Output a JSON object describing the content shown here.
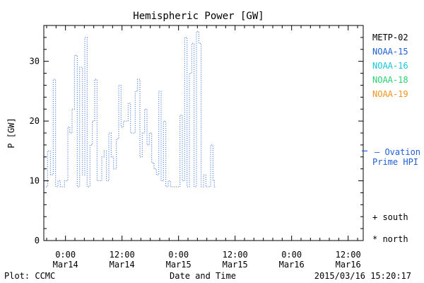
{
  "chart_data": {
    "type": "line",
    "title": "Hemispheric Power [GW]",
    "ylabel": "P [GW]",
    "xlabel": "Date and Time",
    "ylim": [
      0,
      36
    ],
    "yticks": [
      0,
      10,
      20,
      30
    ],
    "xticks": [
      {
        "x": 0,
        "line1": "0:00",
        "line2": "Mar14"
      },
      {
        "x": 12,
        "line1": "12:00",
        "line2": "Mar14"
      },
      {
        "x": 24,
        "line1": "0:00",
        "line2": "Mar15"
      },
      {
        "x": 36,
        "line1": "12:00",
        "line2": "Mar15"
      },
      {
        "x": 48,
        "line1": "0:00",
        "line2": "Mar16"
      },
      {
        "x": 60,
        "line1": "12:00",
        "line2": "Mar16"
      }
    ],
    "x_unit": "hours since 2015-03-14 00:00",
    "xlim": [
      -4.6,
      63.2
    ],
    "grid": false,
    "series": [
      {
        "name": "NOAA-15",
        "color": "#1f5fd6",
        "style": "dotted-step",
        "points": [
          [
            -4.6,
            9
          ],
          [
            -3.8,
            15
          ],
          [
            -3.2,
            11
          ],
          [
            -2.6,
            27
          ],
          [
            -2.1,
            9
          ],
          [
            -1.6,
            10
          ],
          [
            -1.1,
            9
          ],
          [
            -0.2,
            10
          ],
          [
            0.5,
            19
          ],
          [
            0.9,
            18
          ],
          [
            1.4,
            22
          ],
          [
            1.9,
            31
          ],
          [
            2.5,
            9
          ],
          [
            3.0,
            29
          ],
          [
            3.6,
            11
          ],
          [
            4.1,
            34
          ],
          [
            4.6,
            9
          ],
          [
            5.2,
            16
          ],
          [
            5.7,
            20
          ],
          [
            6.2,
            27
          ],
          [
            6.7,
            10
          ],
          [
            7.7,
            14
          ],
          [
            8.2,
            15
          ],
          [
            8.7,
            10
          ],
          [
            9.2,
            18
          ],
          [
            9.7,
            14
          ],
          [
            10.2,
            12
          ],
          [
            10.8,
            17
          ],
          [
            11.3,
            26
          ],
          [
            11.8,
            19
          ],
          [
            12.3,
            20
          ],
          [
            13.3,
            23
          ],
          [
            13.8,
            18
          ],
          [
            14.8,
            25
          ],
          [
            15.3,
            27
          ],
          [
            15.8,
            14
          ],
          [
            16.3,
            18
          ],
          [
            16.8,
            22
          ],
          [
            17.3,
            16
          ],
          [
            17.8,
            18
          ],
          [
            18.3,
            13
          ],
          [
            18.8,
            12
          ],
          [
            19.3,
            11
          ],
          [
            19.8,
            25
          ],
          [
            20.3,
            10
          ],
          [
            20.8,
            20
          ],
          [
            21.3,
            9
          ],
          [
            21.8,
            10
          ],
          [
            22.3,
            9
          ],
          [
            24.3,
            21
          ],
          [
            24.8,
            10
          ],
          [
            25.3,
            34
          ],
          [
            25.8,
            9
          ],
          [
            26.3,
            28
          ],
          [
            26.8,
            33
          ],
          [
            27.3,
            9
          ],
          [
            27.8,
            35
          ],
          [
            28.3,
            33
          ],
          [
            28.8,
            9
          ],
          [
            29.3,
            11
          ],
          [
            29.8,
            9
          ],
          [
            30.8,
            16
          ],
          [
            31.3,
            10
          ],
          [
            31.6,
            9
          ]
        ]
      },
      {
        "name": "Ovation Prime HPI",
        "color": "#1f5fd6",
        "style": "dash-marker",
        "points": [
          [
            63.2,
            15
          ]
        ]
      }
    ],
    "legend": [
      {
        "label": "METP-02",
        "color": "#000000"
      },
      {
        "label": "NOAA-15",
        "color": "#1f5fd6"
      },
      {
        "label": "NOAA-16",
        "color": "#14c8d8"
      },
      {
        "label": "NOAA-18",
        "color": "#28d070"
      },
      {
        "label": "NOAA-19",
        "color": "#f0941c"
      }
    ],
    "ovation_label_1": "— Ovation",
    "ovation_label_2": "Prime HPI",
    "south_label": "+ south",
    "north_label": "* north",
    "footer_left": "Plot: CCMC",
    "footer_right": "2015/03/16 15:20:17"
  }
}
